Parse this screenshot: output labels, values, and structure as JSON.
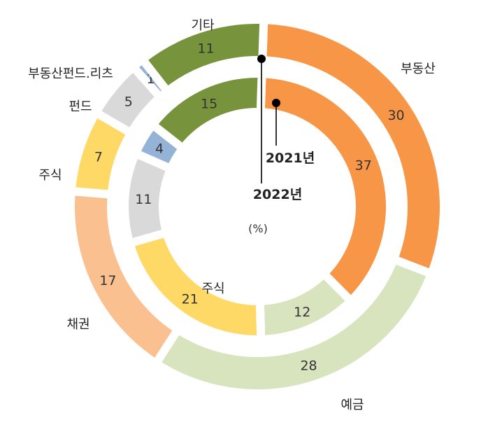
{
  "chart_data": {
    "type": "pie",
    "subtype": "donut-nested",
    "unit": "(%)",
    "series": [
      {
        "name": "2021년",
        "ring": "inner",
        "slices": [
          {
            "category": "부동산",
            "value": 37,
            "color": "#F79646"
          },
          {
            "category": "예금",
            "value": 12,
            "color": "#D7E4BD"
          },
          {
            "category": "부동산펀드.리츠",
            "value": 0,
            "value_label": "–",
            "color": "#95B3D7"
          },
          {
            "category": "주식",
            "value": 21,
            "color": "#FFD966"
          },
          {
            "category": "펀드",
            "value": 11,
            "color": "#D9D9D9"
          },
          {
            "category": "부동산펀드.리츠",
            "value": 4,
            "color": "#95B3D7"
          },
          {
            "category": "기타",
            "value": 15,
            "color": "#77933C"
          }
        ]
      },
      {
        "name": "2022년",
        "ring": "outer",
        "slices": [
          {
            "category": "부동산",
            "value": 30,
            "color": "#F79646"
          },
          {
            "category": "예금",
            "value": 28,
            "color": "#D7E4BD"
          },
          {
            "category": "채권",
            "value": 17,
            "color": "#FAC090"
          },
          {
            "category": "주식",
            "value": 7,
            "color": "#FFD966"
          },
          {
            "category": "펀드",
            "value": 5,
            "color": "#D9D9D9"
          },
          {
            "category": "부동산펀드.리츠",
            "value": 1,
            "color": "#95B3D7"
          },
          {
            "category": "기타",
            "value": 11,
            "color": "#77933C"
          }
        ]
      }
    ],
    "category_labels": [
      "부동산",
      "예금",
      "채권",
      "주식",
      "펀드",
      "부동산펀드.리츠",
      "기타"
    ],
    "inner_category_labels": [
      "주식"
    ]
  }
}
